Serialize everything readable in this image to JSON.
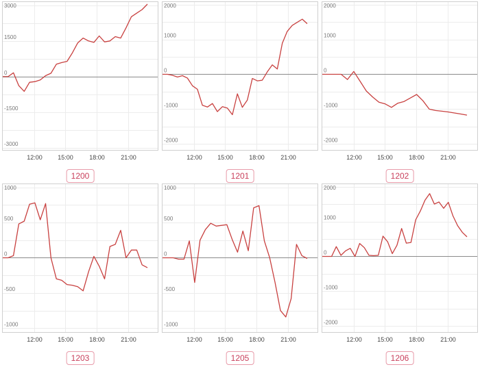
{
  "chart_data": [
    {
      "type": "line",
      "label": "1200",
      "x_ticks": [
        "12:00",
        "15:00",
        "18:00",
        "21:00"
      ],
      "y_ticks": [
        3000,
        1500,
        0,
        -1500,
        -3000
      ],
      "ylim": [
        -3100,
        3150
      ],
      "grid": true,
      "series": [
        {
          "color": "#c8403f",
          "values": [
            0,
            0,
            160,
            -380,
            -620,
            -240,
            -210,
            -140,
            40,
            140,
            520,
            590,
            640,
            1000,
            1420,
            1620,
            1500,
            1440,
            1710,
            1460,
            1500,
            1680,
            1620,
            2050,
            2520,
            2670,
            2820,
            3050
          ]
        }
      ]
    },
    {
      "type": "line",
      "label": "1201",
      "x_ticks": [
        "12:00",
        "15:00",
        "18:00",
        "21:00"
      ],
      "y_ticks": [
        2000,
        1000,
        0,
        -1000,
        -2000
      ],
      "ylim": [
        -2180,
        2080
      ],
      "grid": true,
      "series": [
        {
          "color": "#c8403f",
          "values": [
            0,
            0,
            -30,
            -80,
            -40,
            -110,
            -330,
            -430,
            -890,
            -940,
            -840,
            -1070,
            -930,
            -970,
            -1160,
            -560,
            -950,
            -740,
            -120,
            -190,
            -170,
            70,
            270,
            150,
            890,
            1230,
            1400,
            1490,
            1580,
            1450
          ]
        }
      ]
    },
    {
      "type": "line",
      "label": "1202",
      "x_ticks": [
        "12:00",
        "15:00",
        "18:00",
        "21:00"
      ],
      "y_ticks": [
        2000,
        1000,
        0,
        -1000,
        -2000
      ],
      "ylim": [
        -2180,
        2080
      ],
      "grid": true,
      "series": [
        {
          "color": "#c8403f",
          "values": [
            0,
            0,
            0,
            0,
            -150,
            80,
            -200,
            -480,
            -650,
            -800,
            -850,
            -950,
            -830,
            -780,
            -680,
            -580,
            -760,
            -1000,
            -1040,
            -1060,
            -1080,
            -1110,
            -1140,
            -1170
          ]
        }
      ]
    },
    {
      "type": "line",
      "label": "1203",
      "x_ticks": [
        "12:00",
        "15:00",
        "18:00",
        "21:00"
      ],
      "y_ticks": [
        1000,
        500,
        0,
        -500,
        -1000
      ],
      "ylim": [
        -1060,
        1050
      ],
      "grid": true,
      "series": [
        {
          "color": "#c8403f",
          "values": [
            0,
            0,
            30,
            480,
            520,
            760,
            780,
            540,
            770,
            0,
            -300,
            -320,
            -380,
            -390,
            -410,
            -470,
            -200,
            20,
            -120,
            -300,
            160,
            190,
            390,
            0,
            110,
            110,
            -100,
            -140
          ]
        }
      ]
    },
    {
      "type": "line",
      "label": "1205",
      "x_ticks": [
        "12:00",
        "15:00",
        "18:00",
        "21:00"
      ],
      "y_ticks": [
        1000,
        500,
        0,
        -500,
        -1000
      ],
      "ylim": [
        -1060,
        1050
      ],
      "grid": true,
      "series": [
        {
          "color": "#c8403f",
          "values": [
            0,
            0,
            0,
            -20,
            -20,
            240,
            -350,
            250,
            400,
            490,
            450,
            460,
            470,
            260,
            80,
            380,
            100,
            710,
            740,
            240,
            0,
            -350,
            -750,
            -840,
            -580,
            190,
            30,
            -10
          ]
        }
      ]
    },
    {
      "type": "line",
      "label": "1206",
      "x_ticks": [
        "12:00",
        "15:00",
        "18:00",
        "21:00"
      ],
      "y_ticks": [
        2000,
        1000,
        0,
        -1000,
        -2000
      ],
      "ylim": [
        -2180,
        2080
      ],
      "grid": true,
      "series": [
        {
          "color": "#c8403f",
          "values": [
            0,
            0,
            0,
            280,
            30,
            160,
            230,
            0,
            370,
            250,
            30,
            20,
            30,
            580,
            420,
            80,
            320,
            800,
            380,
            400,
            1050,
            1300,
            1610,
            1800,
            1500,
            1560,
            1380,
            1550,
            1160,
            880,
            690,
            560
          ]
        }
      ]
    }
  ]
}
